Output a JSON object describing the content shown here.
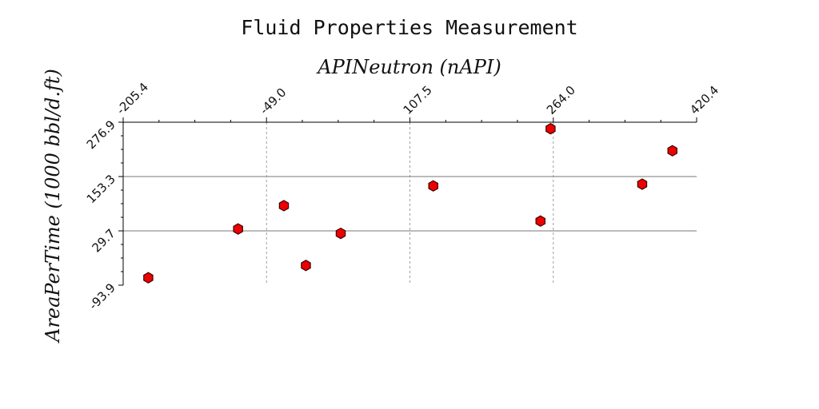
{
  "chart_data": {
    "type": "scatter",
    "title": "Fluid Properties Measurement",
    "xlabel": "APINeutron (nAPI)",
    "ylabel": "AreaPerTime (1000 bbl/d.ft)",
    "xlim": [
      -205.4,
      420.4
    ],
    "ylim": [
      -93.9,
      276.9
    ],
    "xticks": [
      "-205.4",
      "-49.0",
      "107.5",
      "264.0",
      "420.4"
    ],
    "yticks": [
      "-93.9",
      "29.7",
      "153.3",
      "276.9"
    ],
    "grid": true,
    "marker_color": "#ee0000",
    "marker_shape": "hexagon",
    "x": [
      -178,
      -80,
      -30,
      -6,
      32,
      133,
      250,
      261,
      361,
      394
    ],
    "y": [
      -77,
      34,
      87,
      -49,
      24,
      132,
      52,
      262,
      136,
      212
    ]
  }
}
